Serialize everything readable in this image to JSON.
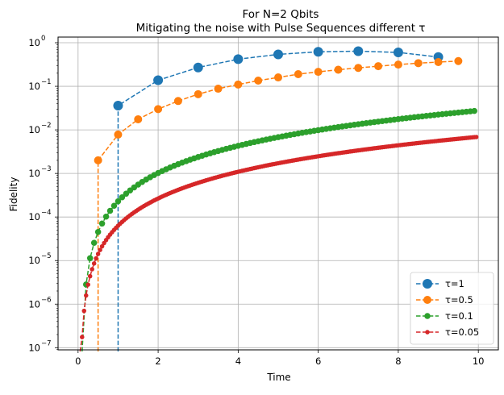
{
  "chart_data": {
    "type": "line",
    "title": "For N=2 Qbits",
    "subtitle": "Mitigating the noise with Pulse Sequences different τ",
    "xlabel": "Time",
    "ylabel": "Fidelity",
    "xlim": [
      -0.5,
      10.5
    ],
    "ylim_log10": [
      -7.05,
      0.13
    ],
    "yscale": "log",
    "xticks": [
      0,
      2,
      4,
      6,
      8,
      10
    ],
    "xtick_labels": [
      "0",
      "2",
      "4",
      "6",
      "8",
      "10"
    ],
    "ytick_exponents": [
      -7,
      -6,
      -5,
      -4,
      -3,
      -2,
      -1,
      0
    ],
    "ytick_labels": [
      "10",
      "10",
      "10",
      "10",
      "10",
      "10",
      "10",
      "10"
    ],
    "ytick_label_exponents": [
      "−7",
      "−6",
      "−5",
      "−4",
      "−3",
      "−2",
      "−1",
      "0"
    ],
    "grid": true,
    "legend_position": "bottom-right",
    "series": [
      {
        "name": "τ=1",
        "color": "#1f77b4",
        "tau": 1,
        "marker_size": 12,
        "x": [
          1,
          2,
          3,
          4,
          5,
          6,
          7,
          8,
          9
        ],
        "y": [
          0.036,
          0.138,
          0.27,
          0.42,
          0.54,
          0.62,
          0.64,
          0.6,
          0.47
        ]
      },
      {
        "name": "τ=0.5",
        "color": "#ff7f0e",
        "tau": 0.5,
        "marker_size": 10,
        "x": [
          0.5,
          1,
          1.5,
          2,
          2.5,
          3,
          3.5,
          4,
          4.5,
          5,
          5.5,
          6,
          6.5,
          7,
          7.5,
          8,
          8.5,
          9,
          9.5
        ],
        "y": [
          0.002,
          0.0078,
          0.0175,
          0.03,
          0.046,
          0.066,
          0.088,
          0.11,
          0.135,
          0.16,
          0.19,
          0.215,
          0.24,
          0.265,
          0.29,
          0.315,
          0.34,
          0.36,
          0.38
        ]
      },
      {
        "name": "τ=0.1",
        "color": "#2ca02c",
        "tau": 0.1,
        "marker_size": 7.5,
        "x0": 0.1,
        "dx": 0.1,
        "n": 99,
        "power": 2,
        "scale": 0.000283
      },
      {
        "name": "τ=0.05",
        "color": "#d62728",
        "tau": 0.05,
        "marker_size": 5.5,
        "x0": 0.05,
        "dx": 0.05,
        "n": 199,
        "power": 2,
        "scale": 7e-05
      }
    ]
  }
}
